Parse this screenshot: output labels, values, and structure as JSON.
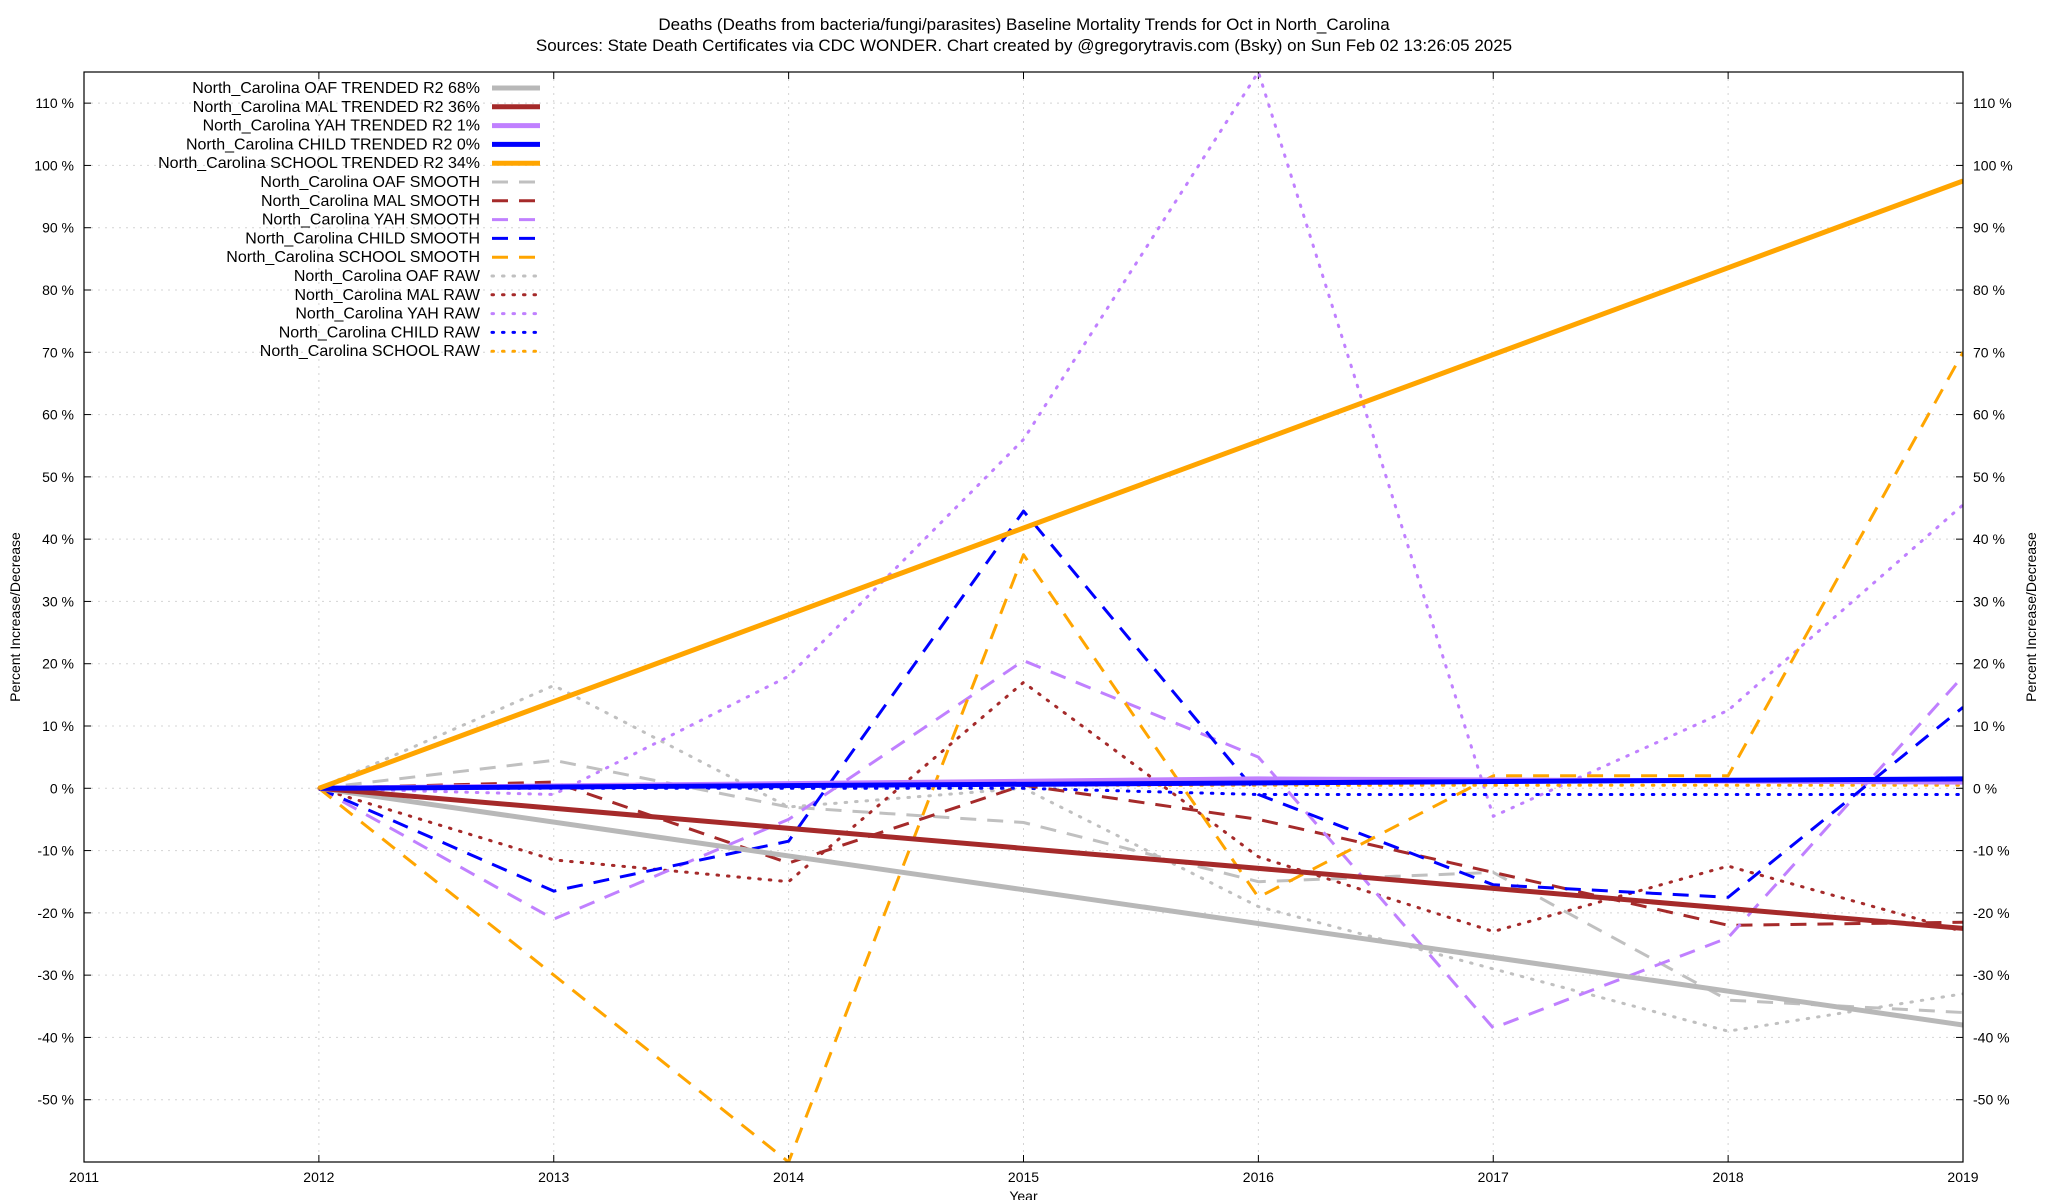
{
  "title_line1": "Deaths (Deaths from bacteria/fungi/parasites)  Baseline Mortality Trends for Oct in North_Carolina",
  "title_line2": "Sources: State Death Certificates via CDC WONDER.               Chart created by @gregorytravis.com (Bsky) on Sun Feb 02 13:26:05 2025",
  "chart_data": {
    "type": "line",
    "xlabel": "Year",
    "ylabel": "Percent Increase/Decrease",
    "xlim": [
      2011,
      2019
    ],
    "ylim": [
      -60,
      115
    ],
    "grid": true,
    "legend_position": "top-left",
    "x_ticks": [
      "2011",
      "2012",
      "2013",
      "2014",
      "2015",
      "2016",
      "2017",
      "2018",
      "2019"
    ],
    "y_ticks": [
      "110 %",
      "100 %",
      "90 %",
      "80 %",
      "70 %",
      "60 %",
      "50 %",
      "40 %",
      "30 %",
      "20 %",
      "10 %",
      "0 %",
      "-10 %",
      "-20 %",
      "-30 %",
      "-40 %",
      "-50 %"
    ],
    "series": [
      {
        "name": "North_Carolina OAF TRENDED R2  68%",
        "color": "#b8b8b8",
        "style": "solid",
        "x": [
          2012,
          2019
        ],
        "values": [
          0,
          -38
        ]
      },
      {
        "name": "North_Carolina MAL TRENDED R2  36%",
        "color": "#a52a2a",
        "style": "solid",
        "x": [
          2012,
          2019
        ],
        "values": [
          0,
          -22.5
        ]
      },
      {
        "name": "North_Carolina YAH TRENDED R2   1%",
        "color": "#c080ff",
        "style": "solid",
        "x": [
          2012,
          2016,
          2019
        ],
        "values": [
          0,
          1.5,
          1
        ]
      },
      {
        "name": "North_Carolina CHILD TRENDED R2   0%",
        "color": "#0000ff",
        "style": "solid",
        "x": [
          2012,
          2019
        ],
        "values": [
          0,
          1.5
        ]
      },
      {
        "name": "North_Carolina SCHOOL TRENDED R2  34%",
        "color": "#ffa500",
        "style": "solid",
        "x": [
          2012,
          2019
        ],
        "values": [
          0,
          97.5
        ]
      },
      {
        "name": "North_Carolina OAF SMOOTH",
        "color": "#c0c0c0",
        "style": "dashed",
        "x": [
          2012,
          2013,
          2014,
          2015,
          2016,
          2017,
          2018,
          2019
        ],
        "values": [
          0,
          4.5,
          -3,
          -5.5,
          -15,
          -13.5,
          -34,
          -36
        ]
      },
      {
        "name": "North_Carolina MAL SMOOTH",
        "color": "#a52a2a",
        "style": "dashed",
        "x": [
          2012,
          2013,
          2014,
          2015,
          2016,
          2017,
          2018,
          2019
        ],
        "values": [
          0,
          1,
          -12,
          0.5,
          -5,
          -13.5,
          -22,
          -21.5
        ]
      },
      {
        "name": "North_Carolina YAH SMOOTH",
        "color": "#c080ff",
        "style": "dashed",
        "x": [
          2012,
          2013,
          2014,
          2015,
          2016,
          2017,
          2018,
          2019
        ],
        "values": [
          0,
          -21,
          -5,
          20.5,
          5,
          -38.5,
          -24,
          18
        ]
      },
      {
        "name": "North_Carolina CHILD SMOOTH",
        "color": "#0000ff",
        "style": "dashed",
        "x": [
          2012,
          2013,
          2014,
          2015,
          2016,
          2017,
          2018,
          2019
        ],
        "values": [
          0,
          -16.5,
          -8.5,
          44.5,
          -1,
          -15.5,
          -17.5,
          13
        ]
      },
      {
        "name": "North_Carolina SCHOOL SMOOTH",
        "color": "#ffa500",
        "style": "dashed",
        "x": [
          2012,
          2013,
          2014,
          2015,
          2016,
          2017,
          2018,
          2019
        ],
        "values": [
          0,
          -30,
          -60,
          37.5,
          -17.5,
          2,
          2,
          70
        ]
      },
      {
        "name": "North_Carolina OAF RAW",
        "color": "#c0c0c0",
        "style": "dotted",
        "x": [
          2012,
          2013,
          2014,
          2015,
          2016,
          2017,
          2018,
          2019
        ],
        "values": [
          0,
          16.5,
          -3,
          0,
          -19,
          -29,
          -39,
          -33
        ]
      },
      {
        "name": "North_Carolina MAL RAW",
        "color": "#a52a2a",
        "style": "dotted",
        "x": [
          2012,
          2013,
          2014,
          2015,
          2016,
          2017,
          2018,
          2019
        ],
        "values": [
          0,
          -11.5,
          -15,
          17,
          -11,
          -23,
          -12.5,
          -23
        ]
      },
      {
        "name": "North_Carolina YAH RAW",
        "color": "#c080ff",
        "style": "dotted",
        "x": [
          2012,
          2013,
          2014,
          2015,
          2016,
          2017,
          2018,
          2019
        ],
        "values": [
          0,
          -1,
          18,
          56,
          115,
          -4.5,
          12.5,
          45.5
        ]
      },
      {
        "name": "North_Carolina CHILD RAW",
        "color": "#0000ff",
        "style": "dotted",
        "x": [
          2012,
          2013,
          2014,
          2015,
          2016,
          2017,
          2018,
          2019
        ],
        "values": [
          0,
          0,
          0,
          0,
          -1,
          -1,
          -1,
          -1
        ]
      },
      {
        "name": "North_Carolina SCHOOL RAW",
        "color": "#ffa500",
        "style": "dotted",
        "x": [
          2012,
          2013,
          2014,
          2015,
          2016,
          2017,
          2018,
          2019
        ],
        "values": [
          0,
          0.5,
          0.5,
          0.5,
          0.5,
          0.5,
          0.5,
          0.5
        ]
      }
    ]
  }
}
